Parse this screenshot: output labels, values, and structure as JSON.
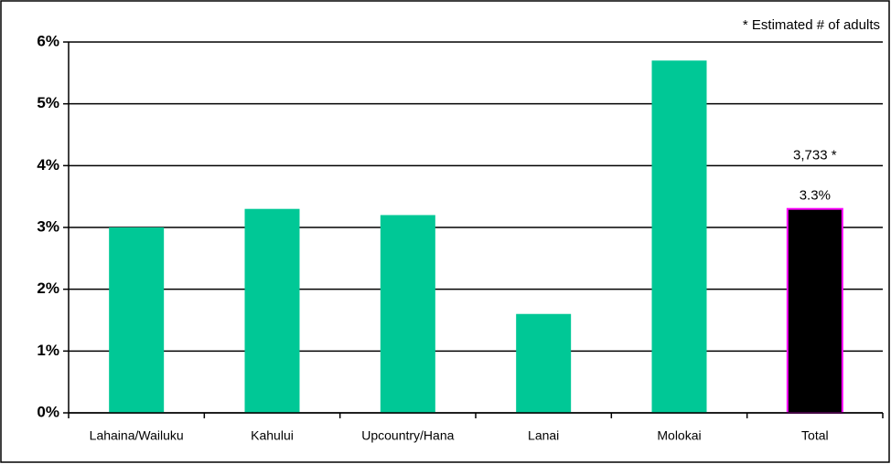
{
  "chart_data": {
    "type": "bar",
    "annotations": [
      "* Estimated # of adults",
      "3,733 *"
    ],
    "categories": [
      "Lahaina/Wailuku",
      "Kahului",
      "Upcountry/Hana",
      "Lanai",
      "Molokai",
      "Total"
    ],
    "values": [
      3.0,
      3.3,
      3.2,
      1.6,
      5.7,
      3.3
    ],
    "value_labels": [
      null,
      null,
      null,
      null,
      null,
      "3.3%"
    ],
    "colors": [
      "#00c896",
      "#00c896",
      "#00c896",
      "#00c896",
      "#00c896",
      "#000000"
    ],
    "edge_colors": [
      null,
      null,
      null,
      null,
      null,
      "#ff00ff"
    ],
    "ylim": [
      0,
      6
    ],
    "yticks": [
      {
        "value": 0,
        "label": "0%"
      },
      {
        "value": 1,
        "label": "1%"
      },
      {
        "value": 2,
        "label": "2%"
      },
      {
        "value": 3,
        "label": "3%"
      },
      {
        "value": 4,
        "label": "4%"
      },
      {
        "value": 5,
        "label": "5%"
      },
      {
        "value": 6,
        "label": "6%"
      }
    ],
    "grid": true
  }
}
